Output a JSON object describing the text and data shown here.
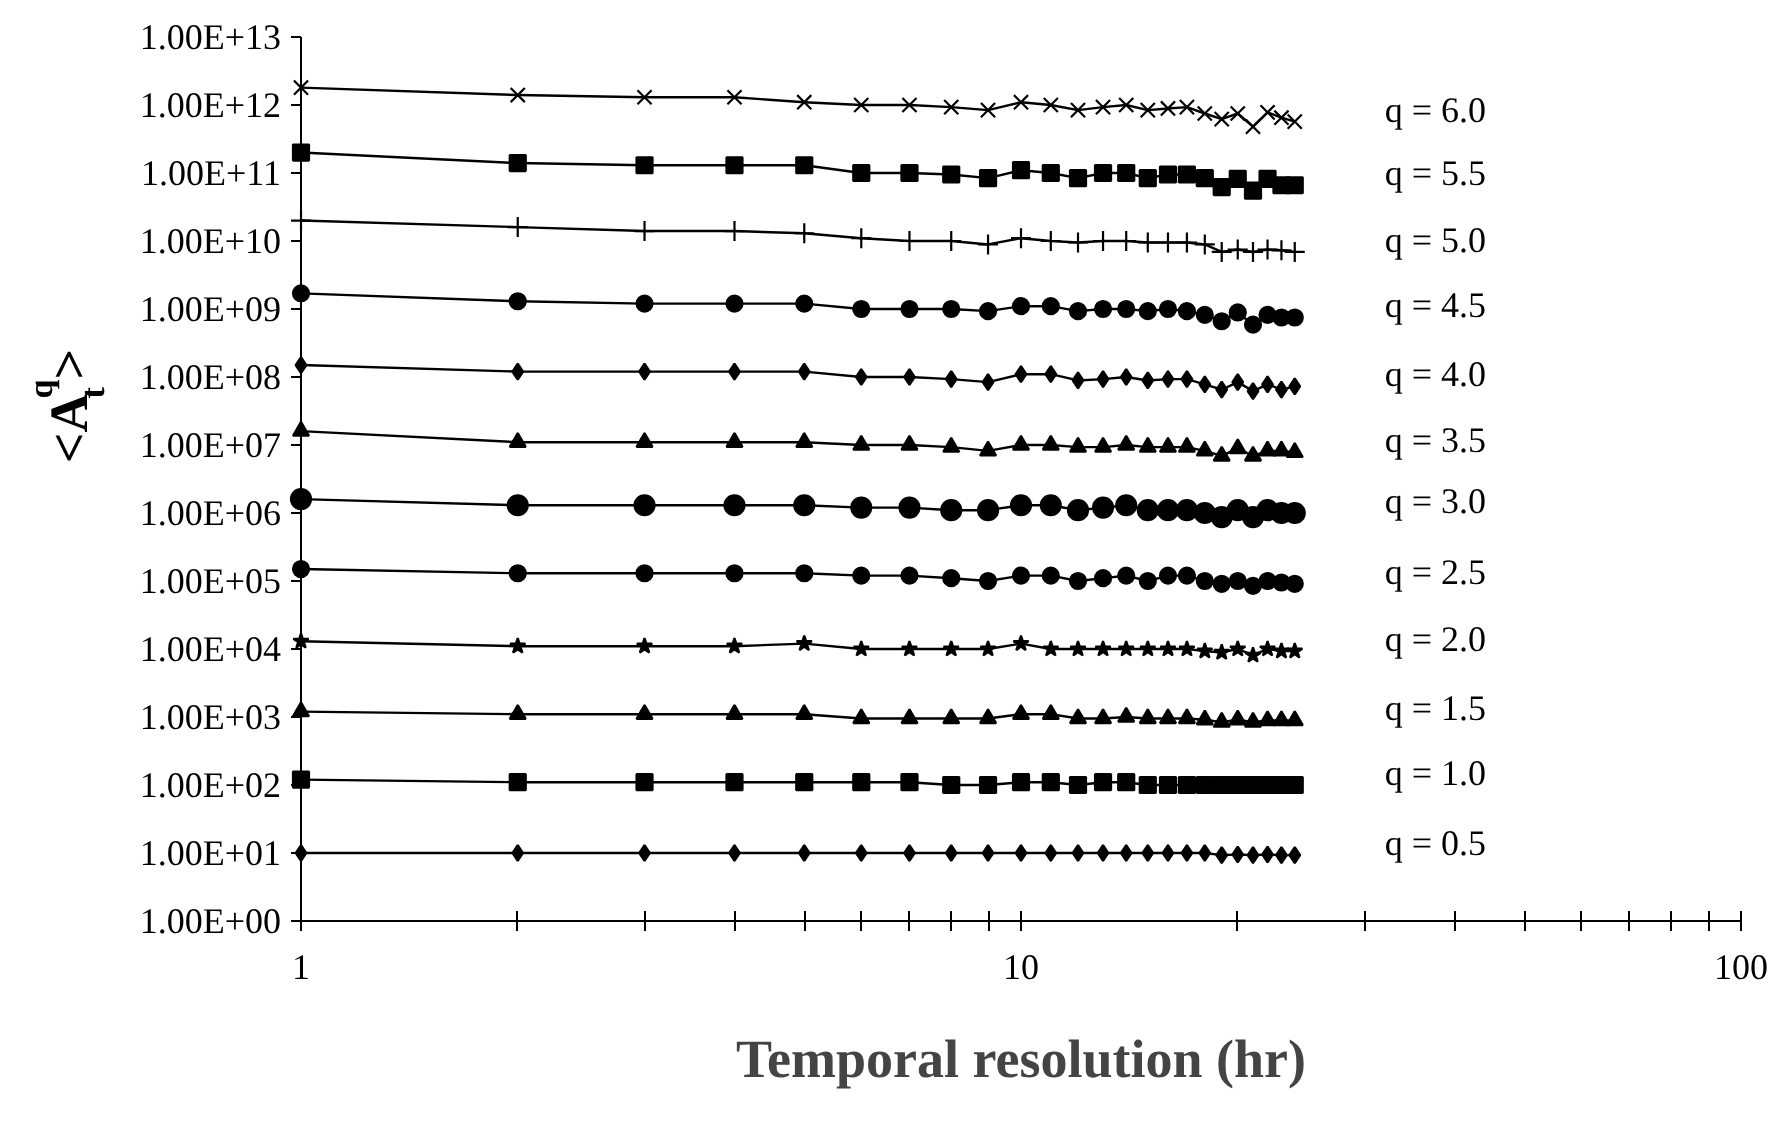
{
  "chart_data": {
    "type": "line",
    "xlabel": "Temporal resolution (hr)",
    "ylabel": "<A$_{t}$$^{q}$>",
    "x": [
      1,
      2,
      3,
      4,
      5,
      6,
      7,
      8,
      9,
      10,
      11,
      12,
      13,
      14,
      15,
      16,
      17,
      18,
      19,
      20,
      21,
      22,
      23,
      24
    ],
    "log": "xy",
    "xlim": [
      1,
      100
    ],
    "ylim": [
      1,
      10000000000000.0
    ],
    "xticks": [
      1,
      {
        "value": 2,
        "label": null
      },
      {
        "value": 3,
        "label": null
      },
      {
        "value": 4,
        "label": null
      },
      {
        "value": 5,
        "label": null
      },
      {
        "value": 6,
        "label": null
      },
      {
        "value": 7,
        "label": null
      },
      {
        "value": 8,
        "label": null
      },
      {
        "value": 9,
        "label": null
      },
      10,
      {
        "value": 20,
        "label": null
      },
      {
        "value": 30,
        "label": null
      },
      {
        "value": 40,
        "label": null
      },
      {
        "value": 50,
        "label": null
      },
      {
        "value": 60,
        "label": null
      },
      {
        "value": 70,
        "label": null
      },
      {
        "value": 80,
        "label": null
      },
      {
        "value": 90,
        "label": null
      },
      100
    ],
    "yticks": [
      {
        "value": 1,
        "label": "1.00E+00"
      },
      {
        "value": 10.0,
        "label": "1.00E+01"
      },
      {
        "value": 100.0,
        "label": "1.00E+02"
      },
      {
        "value": 1000.0,
        "label": "1.00E+03"
      },
      {
        "value": 10000.0,
        "label": "1.00E+04"
      },
      {
        "value": 100000.0,
        "label": "1.00E+05"
      },
      {
        "value": 1000000.0,
        "label": "1.00E+06"
      },
      {
        "value": 10000000.0,
        "label": "1.00E+07"
      },
      {
        "value": 100000000.0,
        "label": "1.00E+08"
      },
      {
        "value": 1000000000.0,
        "label": "1.00E+09"
      },
      {
        "value": 10000000000.0,
        "label": "1.00E+10"
      },
      {
        "value": 100000000000.0,
        "label": "1.00E+11"
      },
      {
        "value": 1000000000000.0,
        "label": "1.00E+12"
      },
      {
        "value": 10000000000000.0,
        "label": "1.00E+13"
      }
    ],
    "grid": false,
    "line_style": "solid",
    "series": [
      {
        "name": "q = 6.0",
        "color": "#000000",
        "marker": "x",
        "values": [
          1800000000000.0,
          1400000000000.0,
          1300000000000.0,
          1300000000000.0,
          1100000000000.0,
          1000000000000.0,
          1000000000000.0,
          930000000000.0,
          840000000000.0,
          1100000000000.0,
          1000000000000.0,
          840000000000.0,
          930000000000.0,
          1000000000000.0,
          840000000000.0,
          890000000000.0,
          930000000000.0,
          750000000000.0,
          620000000000.0,
          750000000000.0,
          480000000000.0,
          780000000000.0,
          650000000000.0,
          570000000000.0
        ]
      },
      {
        "name": "q = 5.5",
        "color": "#000000",
        "marker": "square",
        "values": [
          200000000000.0,
          140000000000.0,
          130000000000.0,
          130000000000.0,
          130000000000.0,
          100000000000.0,
          100000000000.0,
          95000000000.0,
          84000000000.0,
          110000000000.0,
          100000000000.0,
          84000000000.0,
          100000000000.0,
          100000000000.0,
          84000000000.0,
          95000000000.0,
          95000000000.0,
          84000000000.0,
          62000000000.0,
          82000000000.0,
          55000000000.0,
          82000000000.0,
          66000000000.0,
          66000000000.0
        ]
      },
      {
        "name": "q = 5.0",
        "color": "#000000",
        "marker": "cross",
        "values": [
          20000000000.0,
          16000000000.0,
          14000000000.0,
          14000000000.0,
          13000000000.0,
          11000000000.0,
          10000000000.0,
          10000000000.0,
          8900000000.0,
          11000000000.0,
          10000000000.0,
          9500000000.0,
          10000000000.0,
          10000000000.0,
          9500000000.0,
          9500000000.0,
          9500000000.0,
          8900000000.0,
          6900000000.0,
          7500000000.0,
          6900000000.0,
          7500000000.0,
          7300000000.0,
          6900000000.0
        ]
      },
      {
        "name": "q = 4.5",
        "color": "#000000",
        "marker": "circle",
        "values": [
          1700000000.0,
          1300000000.0,
          1200000000.0,
          1200000000.0,
          1200000000.0,
          1000000000.0,
          1000000000.0,
          1000000000.0,
          930000000.0,
          1100000000.0,
          1100000000.0,
          930000000.0,
          1000000000.0,
          1000000000.0,
          930000000.0,
          1000000000.0,
          930000000.0,
          820000000.0,
          660000000.0,
          890000000.0,
          590000000.0,
          820000000.0,
          750000000.0,
          750000000.0
        ]
      },
      {
        "name": "q = 4.0",
        "color": "#000000",
        "marker": "diamond",
        "values": [
          150000000.0,
          120000000.0,
          120000000.0,
          120000000.0,
          120000000.0,
          100000000.0,
          100000000.0,
          93000000.0,
          84000000.0,
          110000000.0,
          110000000.0,
          89000000.0,
          93000000.0,
          100000000.0,
          89000000.0,
          93000000.0,
          93000000.0,
          78000000.0,
          65000000.0,
          84000000.0,
          62000000.0,
          78000000.0,
          65000000.0,
          73000000.0
        ]
      },
      {
        "name": "q = 3.5",
        "color": "#000000",
        "marker": "triangle",
        "values": [
          16000000.0,
          11000000.0,
          11000000.0,
          11000000.0,
          11000000.0,
          10000000.0,
          10000000.0,
          9300000.0,
          8200000.0,
          10000000.0,
          10000000.0,
          9300000.0,
          9300000.0,
          10000000.0,
          9300000.0,
          9300000.0,
          9300000.0,
          8200000.0,
          6900000.0,
          8900000.0,
          6900000.0,
          8200000.0,
          8200000.0,
          7800000.0
        ]
      },
      {
        "name": "q = 3.0",
        "color": "#000000",
        "marker": "circle",
        "values": [
          1600000.0,
          1300000.0,
          1300000.0,
          1300000.0,
          1300000.0,
          1200000.0,
          1200000.0,
          1100000.0,
          1100000.0,
          1300000.0,
          1300000.0,
          1100000.0,
          1200000.0,
          1300000.0,
          1100000.0,
          1100000.0,
          1100000.0,
          1000000.0,
          870000.0,
          1100000.0,
          870000.0,
          1100000.0,
          1000000.0,
          1000000.0
        ]
      },
      {
        "name": "q = 2.5",
        "color": "#000000",
        "marker": "circle",
        "values": [
          150000.0,
          130000.0,
          130000.0,
          130000.0,
          130000.0,
          120000.0,
          120000.0,
          110000.0,
          100000.0,
          120000.0,
          120000.0,
          100000.0,
          110000.0,
          120000.0,
          100000.0,
          120000.0,
          120000.0,
          100000.0,
          91000.0,
          100000.0,
          85000.0,
          100000.0,
          95000.0,
          91000.0
        ]
      },
      {
        "name": "q = 2.0",
        "color": "#000000",
        "marker": "star",
        "values": [
          13000.0,
          11000.0,
          11000.0,
          11000.0,
          12000.0,
          10000.0,
          10000.0,
          10000.0,
          10000.0,
          12000.0,
          10000.0,
          10000.0,
          10000.0,
          10000.0,
          10000.0,
          10000.0,
          10000.0,
          9300.0,
          8900.0,
          10000.0,
          8100.0,
          10000.0,
          9300.0,
          9300.0
        ]
      },
      {
        "name": "q = 1.5",
        "color": "#000000",
        "marker": "triangle",
        "values": [
          1200,
          1100,
          1100,
          1100,
          1100,
          950,
          950,
          950,
          950,
          1100,
          1100,
          950,
          950,
          1000,
          950,
          950,
          950,
          910,
          840,
          910,
          840,
          890,
          890,
          890
        ]
      },
      {
        "name": "q = 1.0",
        "color": "#000000",
        "marker": "square",
        "values": [
          120,
          110,
          110,
          110,
          110,
          110,
          110,
          100,
          100,
          110,
          110,
          100,
          110,
          110,
          100,
          100,
          100,
          100,
          100,
          100,
          100,
          100,
          100,
          100
        ]
      },
      {
        "name": "q = 0.5",
        "color": "#000000",
        "marker": "diamond",
        "values": [
          10,
          10,
          10,
          10,
          10,
          10,
          10,
          10,
          10,
          10,
          10,
          10,
          10,
          10,
          10,
          10,
          10,
          10,
          9.3,
          9.5,
          9.3,
          9.5,
          9.3,
          9.3
        ]
      }
    ]
  }
}
